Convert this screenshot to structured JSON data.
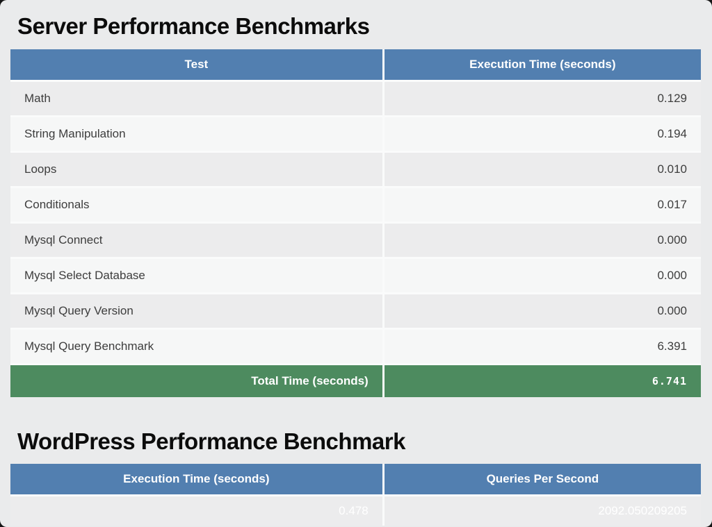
{
  "colors": {
    "page_bg": "#eaebec",
    "header_bg": "#527fb0",
    "header_text": "#ffffff",
    "total_bg": "#4d8b5f",
    "row_odd": "#ececed",
    "row_even": "#f6f7f7",
    "cell_border": "#fafbfb",
    "text": "#3d3d3d",
    "title": "#0c0c0c"
  },
  "server_benchmarks": {
    "title": "Server Performance Benchmarks",
    "columns": [
      "Test",
      "Execution Time (seconds)"
    ],
    "rows": [
      {
        "test": "Math",
        "time": "0.129"
      },
      {
        "test": "String Manipulation",
        "time": "0.194"
      },
      {
        "test": "Loops",
        "time": "0.010"
      },
      {
        "test": "Conditionals",
        "time": "0.017"
      },
      {
        "test": "Mysql Connect",
        "time": "0.000"
      },
      {
        "test": "Mysql Select Database",
        "time": "0.000"
      },
      {
        "test": "Mysql Query Version",
        "time": "0.000"
      },
      {
        "test": "Mysql Query Benchmark",
        "time": "6.391"
      }
    ],
    "total": {
      "label": "Total Time (seconds)",
      "value": "6.741"
    }
  },
  "wordpress_benchmark": {
    "title": "WordPress Performance Benchmark",
    "columns": [
      "Execution Time (seconds)",
      "Queries Per Second"
    ],
    "row": {
      "execution_time": "0.478",
      "queries_per_second": "2092.050209205"
    }
  }
}
